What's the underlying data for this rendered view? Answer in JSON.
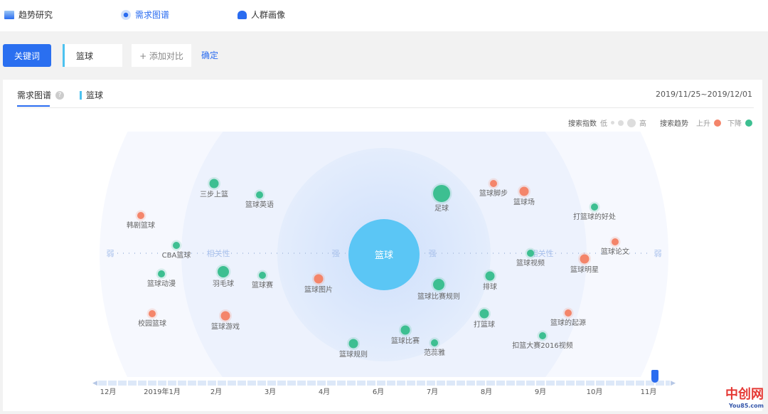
{
  "nav": [
    {
      "label": "趋势研究",
      "icon": "chart-icon"
    },
    {
      "label": "需求图谱",
      "icon": "target-icon",
      "active": true
    },
    {
      "label": "人群画像",
      "icon": "user-icon"
    }
  ],
  "search": {
    "type_button": "关键词",
    "keyword": "篮球",
    "add_compare": "+ 添加对比",
    "confirm": "确定"
  },
  "panel": {
    "tab": "需求图谱",
    "help": "?",
    "keyword_tag": "篮球",
    "date_range": "2019/11/25~2019/12/01"
  },
  "legend": {
    "index_label": "搜索指数",
    "low": "低",
    "high": "高",
    "trend_label": "搜索趋势",
    "up": "上升",
    "down": "下降",
    "up_color": "#f4856a",
    "down_color": "#3dbf91"
  },
  "chart_data": {
    "type": "scatter",
    "center": "篮球",
    "axis": {
      "weak": "弱",
      "relevance": "相关性",
      "strong": "强"
    },
    "nodes": [
      {
        "label": "三步上篮",
        "trend": "down",
        "size": 2
      },
      {
        "label": "篮球英语",
        "trend": "down",
        "size": 1
      },
      {
        "label": "韩剧篮球",
        "trend": "up",
        "size": 1
      },
      {
        "label": "CBA篮球",
        "trend": "down",
        "size": 1
      },
      {
        "label": "篮球动漫",
        "trend": "down",
        "size": 1
      },
      {
        "label": "羽毛球",
        "trend": "down",
        "size": 3
      },
      {
        "label": "篮球赛",
        "trend": "down",
        "size": 1
      },
      {
        "label": "篮球图片",
        "trend": "up",
        "size": 2
      },
      {
        "label": "校园篮球",
        "trend": "up",
        "size": 1
      },
      {
        "label": "篮球游戏",
        "trend": "up",
        "size": 2
      },
      {
        "label": "篮球规则",
        "trend": "down",
        "size": 2
      },
      {
        "label": "足球",
        "trend": "down",
        "size": 5
      },
      {
        "label": "篮球脚步",
        "trend": "up",
        "size": 1
      },
      {
        "label": "篮球场",
        "trend": "up",
        "size": 2
      },
      {
        "label": "打篮球的好处",
        "trend": "down",
        "size": 1
      },
      {
        "label": "篮球论文",
        "trend": "up",
        "size": 1
      },
      {
        "label": "篮球视频",
        "trend": "down",
        "size": 1
      },
      {
        "label": "篮球明星",
        "trend": "up",
        "size": 2
      },
      {
        "label": "排球",
        "trend": "down",
        "size": 2
      },
      {
        "label": "篮球比赛规则",
        "trend": "down",
        "size": 3
      },
      {
        "label": "打篮球",
        "trend": "down",
        "size": 2
      },
      {
        "label": "篮球的起源",
        "trend": "up",
        "size": 1
      },
      {
        "label": "扣篮大赛2016视频",
        "trend": "down",
        "size": 1
      },
      {
        "label": "篮球比赛",
        "trend": "down",
        "size": 2
      },
      {
        "label": "范蕊雅",
        "trend": "down",
        "size": 1
      }
    ]
  },
  "timeline": {
    "ticks": [
      "12月",
      "2019年1月",
      "2月",
      "3月",
      "4月",
      "6月",
      "7月",
      "8月",
      "9月",
      "10月",
      "11月"
    ],
    "position": 0.98
  },
  "watermark": {
    "text": "中创网",
    "sub": "You85.com"
  }
}
